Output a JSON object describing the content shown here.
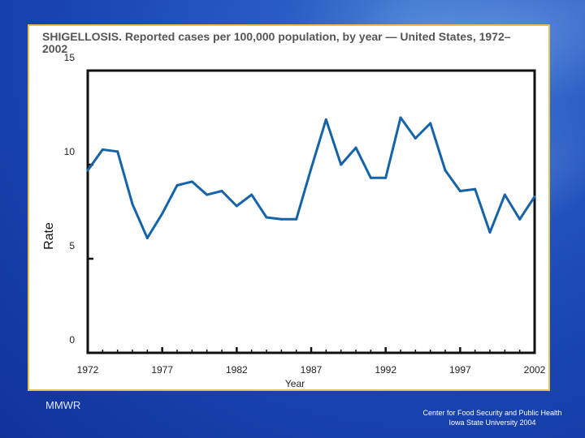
{
  "chart_data": {
    "type": "line",
    "title": "SHIGELLOSIS. Reported cases per 100,000 population, by year — United States, 1972–2002",
    "xlabel": "Year",
    "ylabel": "Rate",
    "xlim": [
      1972,
      2002
    ],
    "ylim": [
      0,
      15
    ],
    "x_ticks": [
      1972,
      1977,
      1982,
      1987,
      1992,
      1997,
      2002
    ],
    "y_ticks": [
      0,
      5,
      10,
      15
    ],
    "color": "#1563a8",
    "series": [
      {
        "name": "Shigellosis rate",
        "x": [
          1972,
          1973,
          1974,
          1975,
          1976,
          1977,
          1978,
          1979,
          1980,
          1981,
          1982,
          1983,
          1984,
          1985,
          1986,
          1987,
          1988,
          1989,
          1990,
          1991,
          1992,
          1993,
          1994,
          1995,
          1996,
          1997,
          1998,
          1999,
          2000,
          2001,
          2002
        ],
        "values": [
          9.7,
          10.8,
          10.7,
          7.9,
          6.1,
          7.4,
          8.9,
          9.1,
          8.4,
          8.6,
          7.8,
          8.4,
          7.2,
          7.1,
          7.1,
          9.8,
          12.4,
          10.0,
          10.9,
          9.3,
          9.3,
          12.5,
          11.4,
          12.2,
          9.7,
          8.6,
          8.7,
          6.4,
          8.4,
          7.1,
          8.3
        ]
      }
    ]
  },
  "footer": {
    "left": "MMWR",
    "right_line1": "Center for Food Security and Public Health",
    "right_line2": "Iowa State University 2004"
  }
}
